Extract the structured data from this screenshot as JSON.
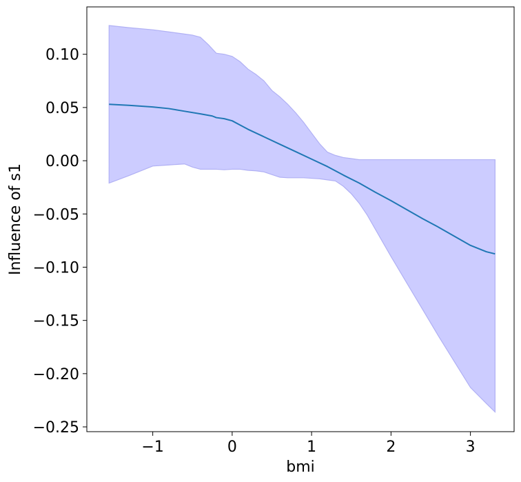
{
  "chart_data": {
    "type": "line",
    "title": "",
    "xlabel": "bmi",
    "ylabel": "Influence of s1",
    "xlim": [
      -1.83,
      3.55
    ],
    "ylim": [
      -0.2545,
      0.1445
    ],
    "xticks": [
      -1,
      0,
      1,
      2,
      3
    ],
    "yticks": [
      0.1,
      0.05,
      0.0,
      -0.05,
      -0.1,
      -0.15,
      -0.2,
      -0.25
    ],
    "xtick_labels": [
      "−1",
      "0",
      "1",
      "2",
      "3"
    ],
    "ytick_labels": [
      "0.10",
      "0.05",
      "0.00",
      "−0.05",
      "−0.10",
      "−0.15",
      "−0.20",
      "−0.25"
    ],
    "grid": false,
    "series": [
      {
        "name": "",
        "color": "#1f77b4",
        "x": [
          -1.55,
          -1.3,
          -1.0,
          -0.8,
          -0.6,
          -0.4,
          -0.25,
          -0.2,
          -0.1,
          0.0,
          0.1,
          0.2,
          0.4,
          0.6,
          0.8,
          1.0,
          1.2,
          1.4,
          1.6,
          1.8,
          2.0,
          2.2,
          2.4,
          2.6,
          2.8,
          3.0,
          3.2,
          3.31
        ],
        "y": [
          0.053,
          0.052,
          0.0505,
          0.049,
          0.0465,
          0.044,
          0.042,
          0.0405,
          0.0395,
          0.0375,
          0.0335,
          0.0295,
          0.0225,
          0.0155,
          0.0085,
          0.0015,
          -0.0055,
          -0.0135,
          -0.021,
          -0.0295,
          -0.0375,
          -0.046,
          -0.0545,
          -0.0625,
          -0.071,
          -0.0795,
          -0.0855,
          -0.0875
        ]
      }
    ],
    "band": {
      "color": "#ccccff",
      "edge_color": "#b0b0f4",
      "x": [
        -1.55,
        -1.3,
        -1.0,
        -0.8,
        -0.6,
        -0.5,
        -0.4,
        -0.3,
        -0.2,
        -0.1,
        0.0,
        0.1,
        0.2,
        0.3,
        0.4,
        0.5,
        0.6,
        0.7,
        0.8,
        0.9,
        1.0,
        1.1,
        1.2,
        1.3,
        1.4,
        1.5,
        1.6,
        1.7,
        1.8,
        2.0,
        2.2,
        2.4,
        2.6,
        2.8,
        3.0,
        3.2,
        3.31
      ],
      "upper": [
        0.127,
        0.125,
        0.123,
        0.121,
        0.119,
        0.118,
        0.116,
        0.109,
        0.101,
        0.1,
        0.098,
        0.093,
        0.086,
        0.081,
        0.075,
        0.066,
        0.06,
        0.053,
        0.045,
        0.036,
        0.026,
        0.016,
        0.008,
        0.005,
        0.003,
        0.002,
        0.001,
        0.001,
        0.001,
        0.001,
        0.001,
        0.001,
        0.001,
        0.001,
        0.001,
        0.001,
        0.001
      ],
      "lower": [
        -0.021,
        -0.014,
        -0.005,
        -0.004,
        -0.003,
        -0.006,
        -0.008,
        -0.008,
        -0.008,
        -0.0085,
        -0.008,
        -0.008,
        -0.009,
        -0.0095,
        -0.0105,
        -0.013,
        -0.0155,
        -0.016,
        -0.016,
        -0.016,
        -0.0165,
        -0.017,
        -0.018,
        -0.019,
        -0.024,
        -0.031,
        -0.04,
        -0.051,
        -0.064,
        -0.09,
        -0.115,
        -0.14,
        -0.165,
        -0.189,
        -0.213,
        -0.228,
        -0.236
      ]
    }
  }
}
